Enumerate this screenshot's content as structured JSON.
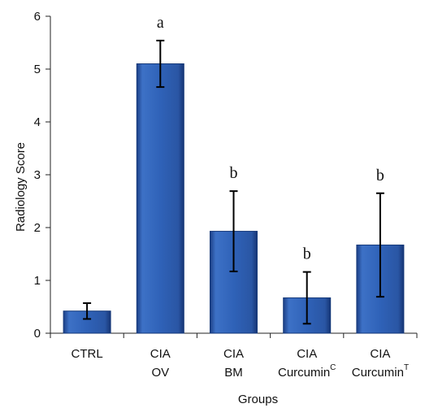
{
  "chart_data": {
    "type": "bar",
    "categories": [
      {
        "lines": [
          "CTRL"
        ],
        "sup": ""
      },
      {
        "lines": [
          "CIA",
          "OV"
        ],
        "sup": ""
      },
      {
        "lines": [
          "CIA",
          "BM"
        ],
        "sup": ""
      },
      {
        "lines": [
          "CIA",
          "Curcumin"
        ],
        "sup": "C"
      },
      {
        "lines": [
          "CIA",
          "Curcumin"
        ],
        "sup": "T"
      }
    ],
    "values": [
      0.42,
      5.1,
      1.93,
      0.67,
      1.67
    ],
    "errors": [
      0.15,
      0.44,
      0.76,
      0.49,
      0.98
    ],
    "annotations": [
      "",
      "a",
      "b",
      "b",
      "b"
    ],
    "xlabel": "Groups",
    "ylabel": "Radiology Score",
    "ylim": [
      0,
      6
    ],
    "yticks": [
      0,
      1,
      2,
      3,
      4,
      5,
      6
    ],
    "bar_color": "#2f5fb3",
    "grid": false
  }
}
